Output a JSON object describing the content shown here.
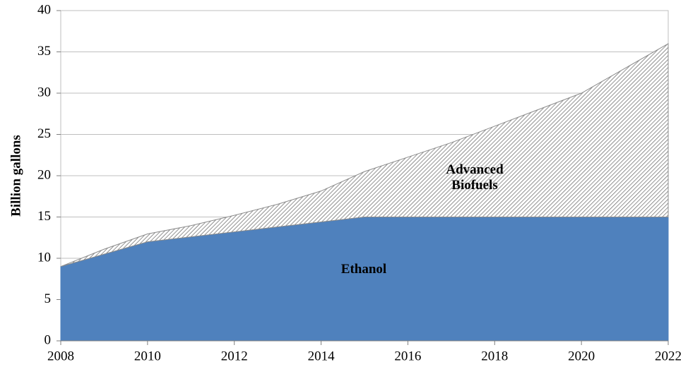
{
  "chart_data": {
    "type": "stacked-area",
    "y_label": "Billion gallons",
    "x": [
      2008,
      2009,
      2010,
      2011,
      2012,
      2013,
      2014,
      2015,
      2016,
      2017,
      2018,
      2019,
      2020,
      2021,
      2022
    ],
    "series": [
      {
        "name": "Ethanol",
        "color": "#4f81bd",
        "values": [
          9,
          10.5,
          12,
          12.6,
          13.2,
          13.8,
          14.4,
          15,
          15,
          15,
          15,
          15,
          15,
          15,
          15
        ]
      },
      {
        "name": "Advanced Biofuels",
        "color": "#595959",
        "values": [
          0,
          0.6,
          0.95,
          1.35,
          2,
          2.75,
          3.75,
          5.5,
          7.25,
          9,
          11,
          13,
          15,
          18,
          21
        ]
      }
    ],
    "xlim": [
      2008,
      2022
    ],
    "xticks": [
      2008,
      2010,
      2012,
      2014,
      2016,
      2018,
      2020,
      2022
    ],
    "ylim": [
      0,
      40
    ],
    "yticks": [
      0,
      5,
      10,
      15,
      20,
      25,
      30,
      35,
      40
    ],
    "grid": true
  }
}
